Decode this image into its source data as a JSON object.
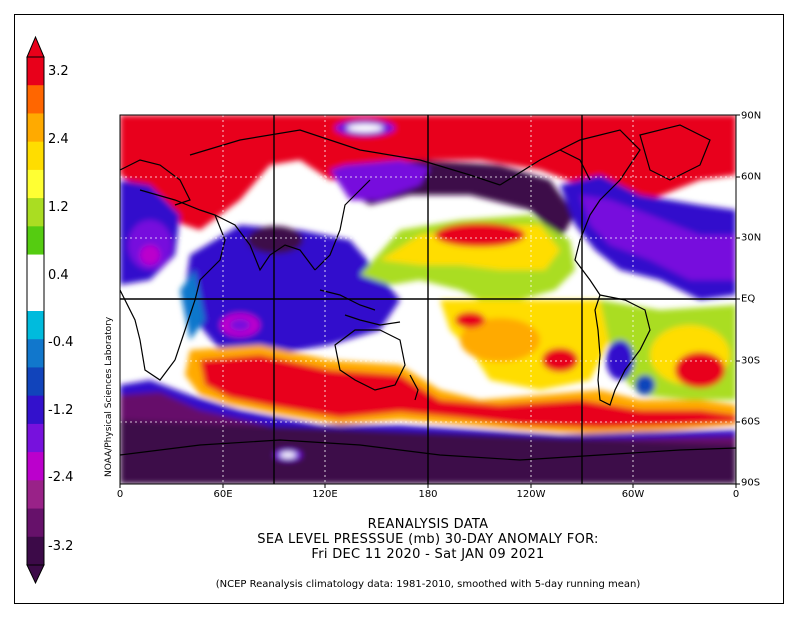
{
  "colorbar": {
    "labels": [
      "3.2",
      "2.4",
      "1.2",
      "0.4",
      "-0.4",
      "-1.2",
      "-2.4",
      "-3.2"
    ],
    "colors": [
      "#e8001a",
      "#ff6600",
      "#ffaa00",
      "#ffdd00",
      "#ffff33",
      "#aadd22",
      "#55cc11",
      "#ffffff",
      "#ffffff",
      "#00bbdd",
      "#1177cc",
      "#1144bb",
      "#3311cc",
      "#7711dd",
      "#bb00cc",
      "#992288",
      "#66116a",
      "#3c0a48"
    ]
  },
  "credit": "NOAA/Physical Sciences Laboratory",
  "title": {
    "line1": "REANALYSIS DATA",
    "line2": "SEA LEVEL PRESSSUE (mb)   30-DAY ANOMALY FOR:",
    "line3": "Fri DEC 11 2020 - Sat JAN 09 2021"
  },
  "footnote": "(NCEP Reanalysis climatology data: 1981-2010, smoothed with 5-day running mean)",
  "axes": {
    "x_ticks": [
      "0",
      "60E",
      "120E",
      "180",
      "120W",
      "60W",
      "0"
    ],
    "y_ticks": [
      "90N",
      "60N",
      "30N",
      "EQ",
      "30S",
      "60S",
      "90S"
    ]
  }
}
